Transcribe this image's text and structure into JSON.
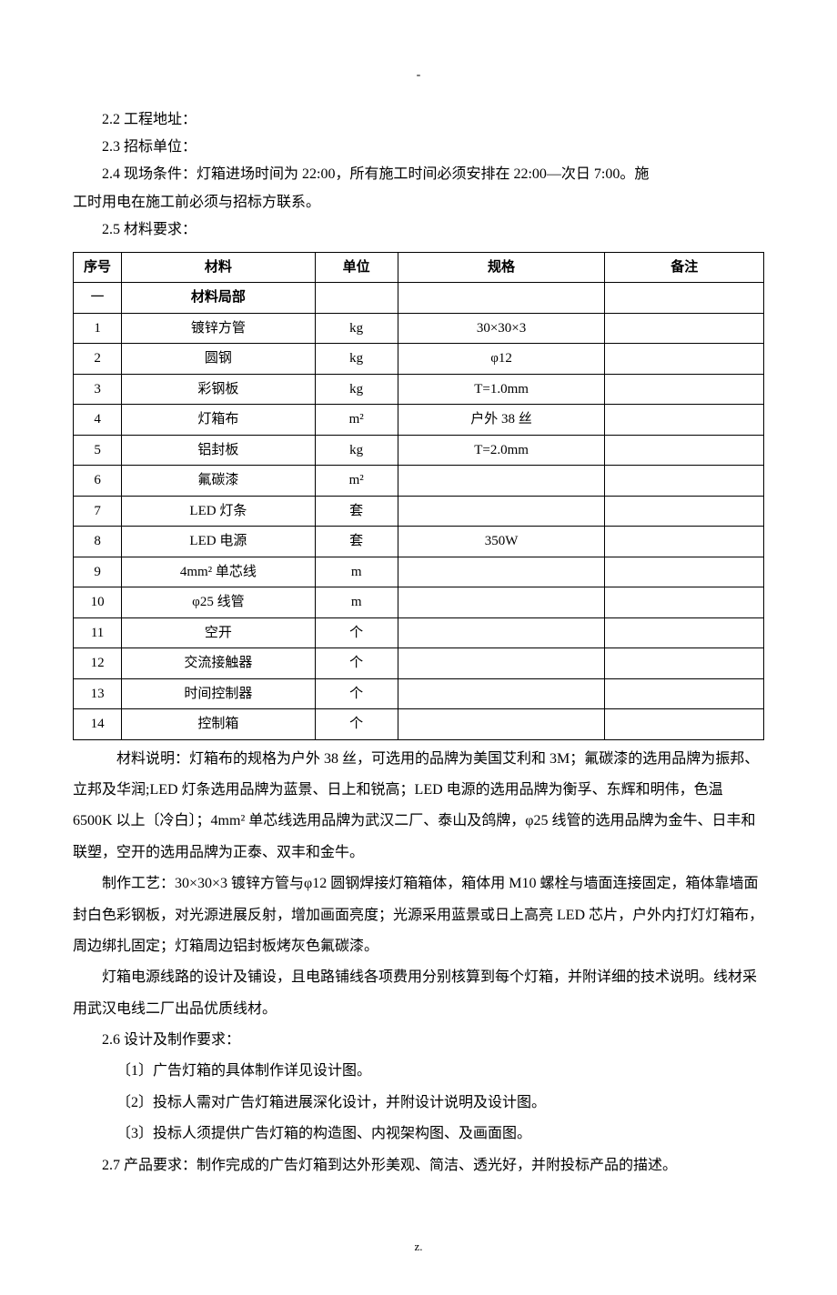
{
  "top_dash": "-",
  "lines": {
    "l1": "2.2  工程地址：",
    "l2": "2.3  招标单位：",
    "l3": "2.4  现场条件：灯箱进场时间为 22:00，所有施工时间必须安排在 22:00—次日 7:00。施",
    "l3b": "工时用电在施工前必须与招标方联系。",
    "l4": "2.5  材料要求："
  },
  "table": {
    "headers": {
      "seq": "序号",
      "mat": "材料",
      "unit": "单位",
      "spec": "规格",
      "note": "备注"
    },
    "section": "材料局部",
    "section_seq": "一",
    "rows": [
      {
        "seq": "1",
        "mat": "镀锌方管",
        "unit": "kg",
        "spec": "30×30×3",
        "note": ""
      },
      {
        "seq": "2",
        "mat": "圆钢",
        "unit": "kg",
        "spec": "φ12",
        "note": ""
      },
      {
        "seq": "3",
        "mat": "彩钢板",
        "unit": "kg",
        "spec": "T=1.0mm",
        "note": ""
      },
      {
        "seq": "4",
        "mat": "灯箱布",
        "unit": "m²",
        "spec": "户外 38 丝",
        "note": ""
      },
      {
        "seq": "5",
        "mat": "铝封板",
        "unit": "kg",
        "spec": "T=2.0mm",
        "note": ""
      },
      {
        "seq": "6",
        "mat": "氟碳漆",
        "unit": "m²",
        "spec": "",
        "note": ""
      },
      {
        "seq": "7",
        "mat": "LED 灯条",
        "unit": "套",
        "spec": "",
        "note": ""
      },
      {
        "seq": "8",
        "mat": "LED 电源",
        "unit": "套",
        "spec": "350W",
        "note": ""
      },
      {
        "seq": "9",
        "mat": "4mm² 单芯线",
        "unit": "m",
        "spec": "",
        "note": ""
      },
      {
        "seq": "10",
        "mat": "φ25 线管",
        "unit": "m",
        "spec": "",
        "note": ""
      },
      {
        "seq": "11",
        "mat": "空开",
        "unit": "个",
        "spec": "",
        "note": ""
      },
      {
        "seq": "12",
        "mat": "交流接触器",
        "unit": "个",
        "spec": "",
        "note": ""
      },
      {
        "seq": "13",
        "mat": "时间控制器",
        "unit": "个",
        "spec": "",
        "note": ""
      },
      {
        "seq": "14",
        "mat": "控制箱",
        "unit": "个",
        "spec": "",
        "note": ""
      }
    ]
  },
  "body": {
    "p1": "材料说明：灯箱布的规格为户外 38 丝，可选用的品牌为美国艾利和 3M；氟碳漆的选用品牌为振邦、立邦及华润;LED 灯条选用品牌为蓝景、日上和锐高；LED 电源的选用品牌为衡孚、东辉和明伟，色温 6500K 以上〔冷白〕；4mm² 单芯线选用品牌为武汉二厂、泰山及鸽牌，φ25 线管的选用品牌为金牛、日丰和联塑，空开的选用品牌为正泰、双丰和金牛。",
    "p2": "制作工艺：30×30×3 镀锌方管与φ12 圆钢焊接灯箱箱体，箱体用 M10 螺栓与墙面连接固定，箱体靠墙面封白色彩钢板，对光源进展反射，增加画面亮度；光源采用蓝景或日上高亮 LED 芯片，户外内打灯灯箱布，周边绑扎固定；灯箱周边铝封板烤灰色氟碳漆。",
    "p3": "灯箱电源线路的设计及铺设，且电路铺线各项费用分别核算到每个灯箱，并附详细的技术说明。线材采用武汉电线二厂出品优质线材。",
    "p4": "2.6  设计及制作要求：",
    "p5": "〔1〕广告灯箱的具体制作详见设计图。",
    "p6": "〔2〕投标人需对广告灯箱进展深化设计，并附设计说明及设计图。",
    "p7": "〔3〕投标人须提供广告灯箱的构造图、内视架构图、及画面图。",
    "p8": "2.7 产品要求：制作完成的广告灯箱到达外形美观、简洁、透光好，并附投标产品的描述。"
  },
  "footer": "z."
}
